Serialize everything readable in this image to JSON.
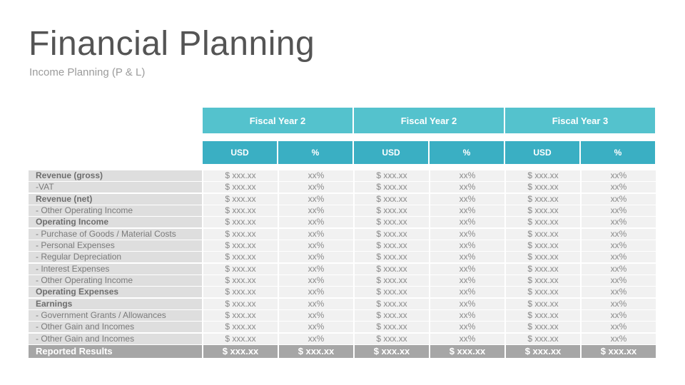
{
  "title": "Financial Planning",
  "subtitle": "Income Planning (P & L)",
  "colors": {
    "header_fy": "#54c2cd",
    "header_unit": "#3aafc3",
    "label_bg": "#dedede",
    "value_bg": "#f1f1f1",
    "total_bg": "#a6a6a6"
  },
  "table": {
    "fiscal_years": [
      "Fiscal Year 2",
      "Fiscal Year 2",
      "Fiscal Year 3"
    ],
    "units": [
      "USD",
      "%",
      "USD",
      "%",
      "USD",
      "%"
    ],
    "rows": [
      {
        "label": "Revenue (gross)",
        "bold": true,
        "values": [
          "$ xxx.xx",
          "xx%",
          "$ xxx.xx",
          "xx%",
          "$ xxx.xx",
          "xx%"
        ]
      },
      {
        "label": "-VAT",
        "bold": false,
        "values": [
          "$ xxx.xx",
          "xx%",
          "$ xxx.xx",
          "xx%",
          "$ xxx.xx",
          "xx%"
        ]
      },
      {
        "label": "Revenue (net)",
        "bold": true,
        "values": [
          "$ xxx.xx",
          "xx%",
          "$ xxx.xx",
          "xx%",
          "$ xxx.xx",
          "xx%"
        ]
      },
      {
        "label": "- Other Operating Income",
        "bold": false,
        "values": [
          "$ xxx.xx",
          "xx%",
          "$ xxx.xx",
          "xx%",
          "$ xxx.xx",
          "xx%"
        ]
      },
      {
        "label": "Operating Income",
        "bold": true,
        "values": [
          "$ xxx.xx",
          "xx%",
          "$ xxx.xx",
          "xx%",
          "$ xxx.xx",
          "xx%"
        ]
      },
      {
        "label": "- Purchase of Goods / Material Costs",
        "bold": false,
        "values": [
          "$ xxx.xx",
          "xx%",
          "$ xxx.xx",
          "xx%",
          "$ xxx.xx",
          "xx%"
        ]
      },
      {
        "label": "- Personal Expenses",
        "bold": false,
        "values": [
          "$ xxx.xx",
          "xx%",
          "$ xxx.xx",
          "xx%",
          "$ xxx.xx",
          "xx%"
        ]
      },
      {
        "label": "- Regular Depreciation",
        "bold": false,
        "values": [
          "$ xxx.xx",
          "xx%",
          "$ xxx.xx",
          "xx%",
          "$ xxx.xx",
          "xx%"
        ]
      },
      {
        "label": "- Interest Expenses",
        "bold": false,
        "values": [
          "$ xxx.xx",
          "xx%",
          "$ xxx.xx",
          "xx%",
          "$ xxx.xx",
          "xx%"
        ]
      },
      {
        "label": "- Other Operating Income",
        "bold": false,
        "values": [
          "$ xxx.xx",
          "xx%",
          "$ xxx.xx",
          "xx%",
          "$ xxx.xx",
          "xx%"
        ]
      },
      {
        "label": "Operating Expenses",
        "bold": true,
        "values": [
          "$ xxx.xx",
          "xx%",
          "$ xxx.xx",
          "xx%",
          "$ xxx.xx",
          "xx%"
        ]
      },
      {
        "label": "Earnings",
        "bold": true,
        "values": [
          "$ xxx.xx",
          "xx%",
          "$ xxx.xx",
          "xx%",
          "$ xxx.xx",
          "xx%"
        ]
      },
      {
        "label": "- Government Grants / Allowances",
        "bold": false,
        "values": [
          "$ xxx.xx",
          "xx%",
          "$ xxx.xx",
          "xx%",
          "$ xxx.xx",
          "xx%"
        ]
      },
      {
        "label": "- Other Gain and Incomes",
        "bold": false,
        "values": [
          "$ xxx.xx",
          "xx%",
          "$ xxx.xx",
          "xx%",
          "$ xxx.xx",
          "xx%"
        ]
      },
      {
        "label": "- Other Gain and Incomes",
        "bold": false,
        "values": [
          "$ xxx.xx",
          "xx%",
          "$ xxx.xx",
          "xx%",
          "$ xxx.xx",
          "xx%"
        ]
      }
    ],
    "total": {
      "label": "Reported Results",
      "values": [
        "$ xxx.xx",
        "$ xxx.xx",
        "$ xxx.xx",
        "$ xxx.xx",
        "$ xxx.xx",
        "$ xxx.xx"
      ]
    }
  }
}
